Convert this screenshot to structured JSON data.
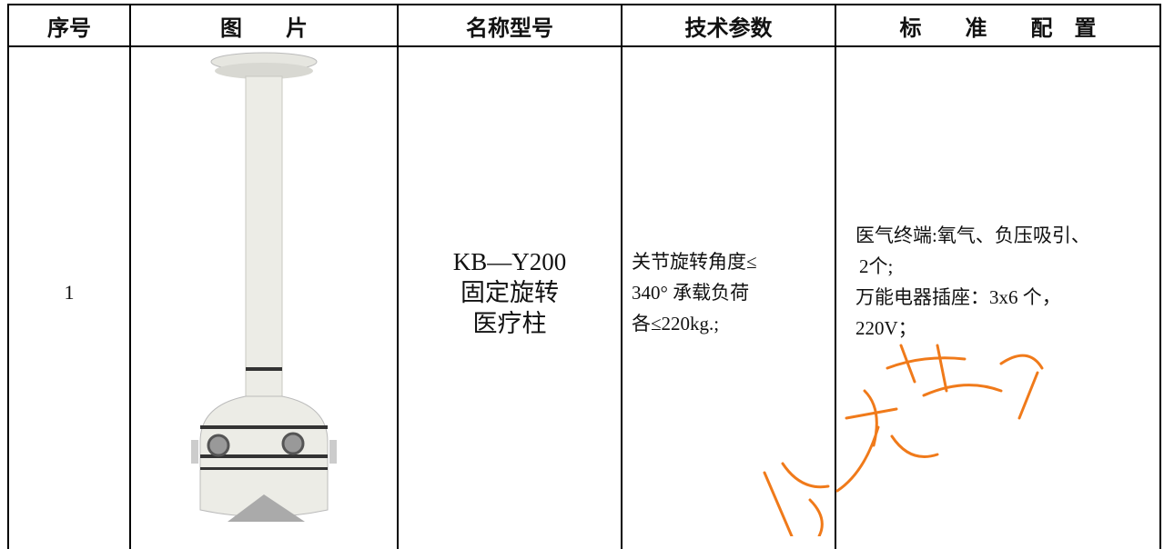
{
  "table": {
    "header": [
      "序号",
      "图　　片",
      "名称型号",
      "技术参数",
      "标　　准　　配　置"
    ],
    "rows": [
      {
        "no": "1",
        "name": [
          "KB—Y200",
          "固定旋转",
          "医疗柱"
        ],
        "tech": [
          "关节旋转角度≤",
          "340° 承载负荷",
          "各≤220kg.;"
        ],
        "config": [
          "医气终端:氧气、负压吸引、",
          "2个;",
          "万能电器插座：3x6 个，",
          "220V；"
        ]
      }
    ]
  }
}
